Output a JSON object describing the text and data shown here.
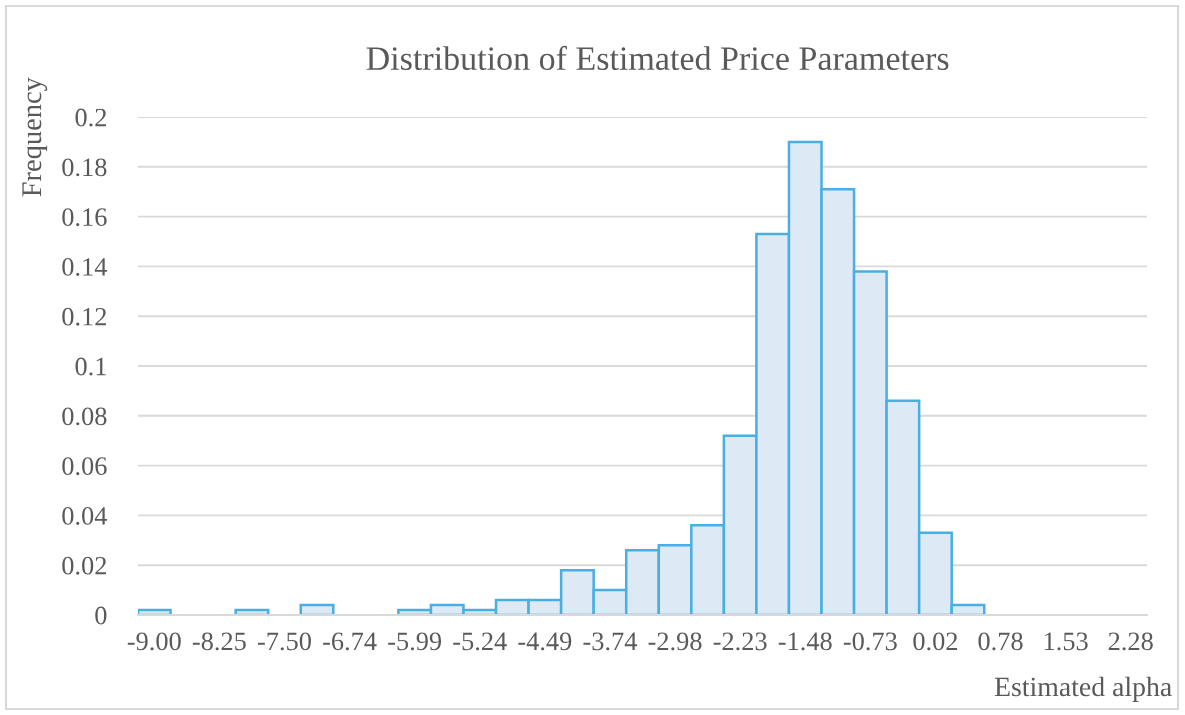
{
  "chart_data": {
    "type": "bar",
    "title": "Distribution of Estimated Price Parameters",
    "xlabel": "Estimated alpha",
    "ylabel": "Frequency",
    "categories": [
      "-9.00",
      null,
      "-8.25",
      null,
      "-7.50",
      null,
      "-6.74",
      null,
      "-5.99",
      null,
      "-5.24",
      null,
      "-4.49",
      null,
      "-3.74",
      null,
      "-2.98",
      null,
      "-2.23",
      null,
      "-1.48",
      null,
      "-0.73",
      null,
      "0.02",
      null,
      "0.78",
      null,
      "1.53",
      null,
      "2.28"
    ],
    "values": [
      0.002,
      0,
      0,
      0.002,
      0,
      0.004,
      0,
      0,
      0.002,
      0.004,
      0.002,
      0.006,
      0.006,
      0.018,
      0.01,
      0.026,
      0.028,
      0.036,
      0.072,
      0.153,
      0.19,
      0.171,
      0.138,
      0.086,
      0.033,
      0.004,
      0,
      0,
      0,
      0,
      0
    ],
    "color": "#ddeaf6",
    "ylim": [
      0,
      0.2
    ],
    "yticks": [
      0,
      0.02,
      0.04,
      0.06,
      0.08,
      0.1,
      0.12,
      0.14,
      0.16,
      0.18,
      0.2
    ],
    "grid": "y"
  }
}
